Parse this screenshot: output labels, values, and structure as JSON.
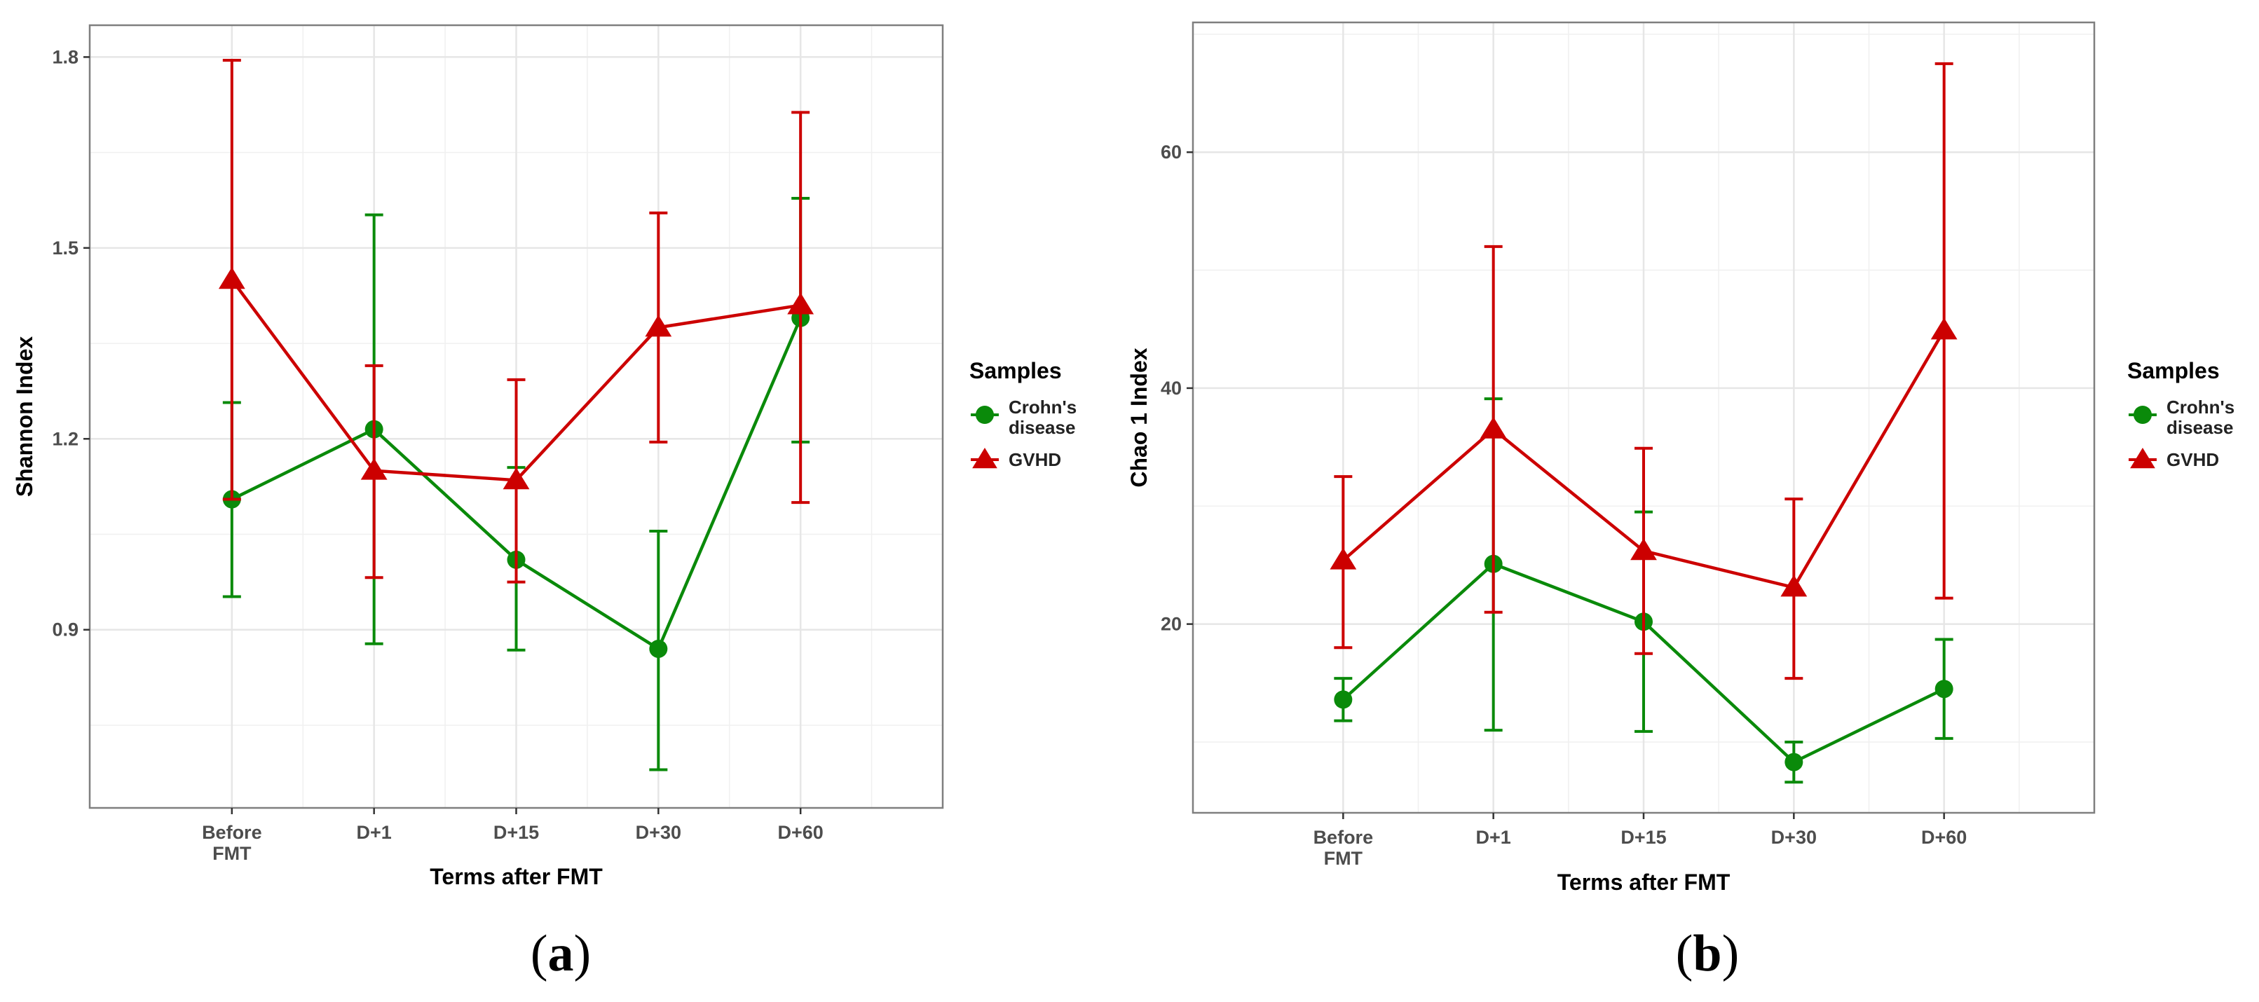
{
  "panels": [
    {
      "panel_label": "(a)",
      "panel_letter": "a",
      "chart_data": {
        "type": "line",
        "title": "",
        "xlabel": "Terms after FMT",
        "ylabel": "Shannon Index",
        "categories": [
          "Before\nFMT",
          "D+1",
          "D+15",
          "D+30",
          "D+60"
        ],
        "ylim": [
          0.62,
          1.85
        ],
        "yticks": [
          0.9,
          1.2,
          1.5,
          1.8
        ],
        "ytick_labels": [
          "0.9",
          "1.2",
          "1.5",
          "1.8"
        ],
        "grid": true,
        "legend": {
          "title": "Samples",
          "position": "right"
        },
        "series": [
          {
            "name": "Crohn's\ndisease",
            "color": "#0a8a0a",
            "marker": "circle",
            "values": [
              1.105,
              1.215,
              1.01,
              0.87,
              1.39
            ],
            "lower": [
              0.952,
              0.878,
              0.868,
              0.68,
              1.195
            ],
            "upper": [
              1.257,
              1.552,
              1.155,
              1.055,
              1.578
            ]
          },
          {
            "name": "GVHD",
            "color": "#cc0000",
            "marker": "triangle",
            "values": [
              1.45,
              1.15,
              1.135,
              1.375,
              1.41
            ],
            "lower": [
              1.105,
              0.982,
              0.975,
              1.195,
              1.1
            ],
            "upper": [
              1.795,
              1.315,
              1.293,
              1.555,
              1.713
            ]
          }
        ]
      }
    },
    {
      "panel_label": "(b)",
      "panel_letter": "b",
      "chart_data": {
        "type": "line",
        "title": "",
        "xlabel": "Terms after FMT",
        "ylabel": "Chao 1 Index",
        "categories": [
          "Before\nFMT",
          "D+1",
          "D+15",
          "D+30",
          "D+60"
        ],
        "ylim": [
          4,
          71
        ],
        "yticks": [
          20,
          40,
          60
        ],
        "ytick_labels": [
          "20",
          "40",
          "60"
        ],
        "grid": true,
        "legend": {
          "title": "Samples",
          "position": "right"
        },
        "series": [
          {
            "name": "Crohn's\ndisease",
            "color": "#0a8a0a",
            "marker": "circle",
            "values": [
              13.6,
              25.1,
              20.2,
              8.3,
              14.5
            ],
            "lower": [
              11.8,
              11.0,
              10.9,
              6.6,
              10.3
            ],
            "upper": [
              15.4,
              39.1,
              29.5,
              10.0,
              18.7
            ]
          },
          {
            "name": "GVHD",
            "color": "#cc0000",
            "marker": "triangle",
            "values": [
              25.4,
              36.5,
              26.2,
              23.1,
              44.9
            ],
            "lower": [
              18.0,
              21.0,
              17.5,
              15.4,
              22.2
            ],
            "upper": [
              32.5,
              52.0,
              34.9,
              30.6,
              67.5
            ]
          }
        ]
      }
    }
  ]
}
